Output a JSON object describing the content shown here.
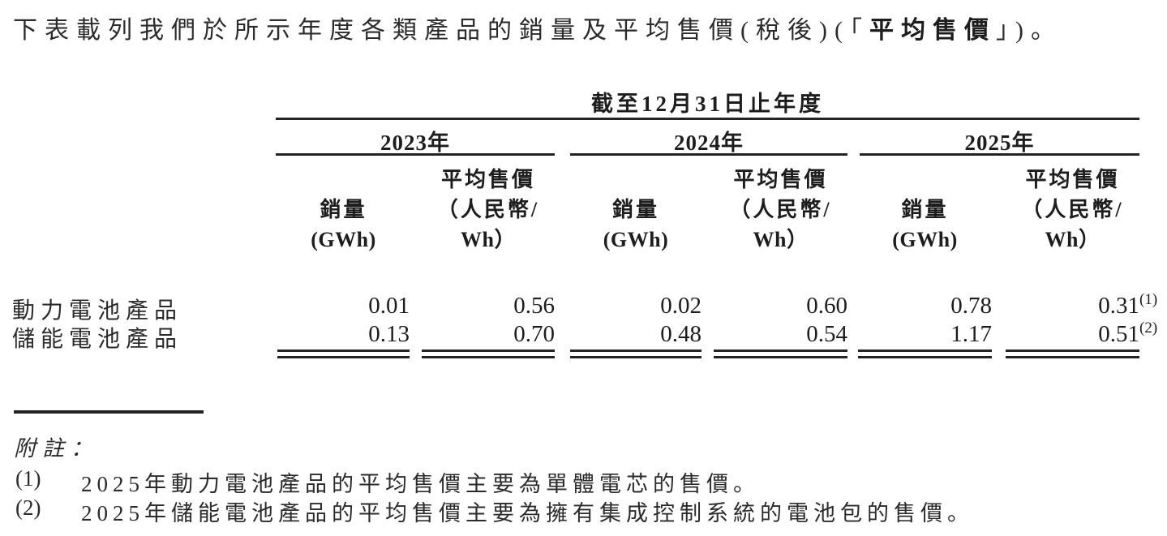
{
  "page": {
    "intro": {
      "pre": "下表載列我們於所示年度各類產品的銷量及平均售價(稅後)(「",
      "bold": "平均售價",
      "post": "」)。"
    }
  },
  "table": {
    "spanner": "截至12月31日止年度",
    "years": [
      "2023年",
      "2024年",
      "2025年"
    ],
    "subheaders": {
      "volume_l1": "銷量",
      "volume_l2": "(GWh)",
      "asp_l1": "平均售價",
      "asp_l2": "（人民幣/",
      "asp_l3": "Wh）"
    },
    "rows": [
      {
        "label": "動力電池產品",
        "v": [
          "0.01",
          "0.56",
          "0.02",
          "0.60",
          "0.78",
          "0.31"
        ],
        "sup6": "(1)"
      },
      {
        "label": "儲能電池產品",
        "v": [
          "0.13",
          "0.70",
          "0.48",
          "0.54",
          "1.17",
          "0.51"
        ],
        "sup6": "(2)"
      }
    ]
  },
  "notes": {
    "heading": "附註：",
    "items": [
      {
        "marker": "(1)",
        "text": "2025年動力電池產品的平均售價主要為單體電芯的售價。"
      },
      {
        "marker": "(2)",
        "text": "2025年儲能電池產品的平均售價主要為擁有集成控制系統的電池包的售價。"
      }
    ]
  }
}
